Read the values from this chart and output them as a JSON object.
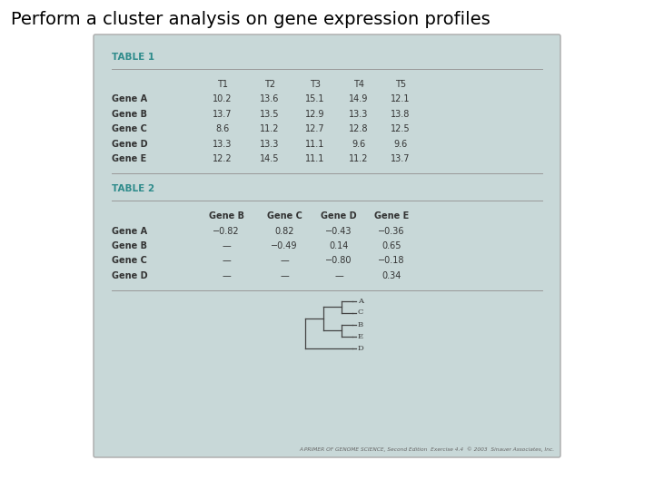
{
  "title": "Perform a cluster analysis on gene expression profiles",
  "title_fontsize": 14,
  "bg_color": "#c8d8d8",
  "outer_bg": "#ffffff",
  "table1_title": "TABLE 1",
  "table1_header": [
    "",
    "T1",
    "T2",
    "T3",
    "T4",
    "T5"
  ],
  "table1_rows": [
    [
      "Gene A",
      "10.2",
      "13.6",
      "15.1",
      "14.9",
      "12.1"
    ],
    [
      "Gene B",
      "13.7",
      "13.5",
      "12.9",
      "13.3",
      "13.8"
    ],
    [
      "Gene C",
      "8.6",
      "11.2",
      "12.7",
      "12.8",
      "12.5"
    ],
    [
      "Gene D",
      "13.3",
      "13.3",
      "11.1",
      "9.6",
      "9.6"
    ],
    [
      "Gene E",
      "12.2",
      "14.5",
      "11.1",
      "11.2",
      "13.7"
    ]
  ],
  "table2_title": "TABLE 2",
  "table2_header": [
    "",
    "Gene B",
    "Gene C",
    "Gene D",
    "Gene E"
  ],
  "table2_rows": [
    [
      "Gene A",
      "−0.82",
      "0.82",
      "−0.43",
      "−0.36"
    ],
    [
      "Gene B",
      "—",
      "−0.49",
      "0.14",
      "0.65"
    ],
    [
      "Gene C",
      "—",
      "—",
      "−0.80",
      "−0.18"
    ],
    [
      "Gene D",
      "—",
      "—",
      "—",
      "0.34"
    ]
  ],
  "teal_color": "#2e8b8b",
  "text_color": "#333333",
  "line_color": "#999999",
  "caption": "A PRIMER OF GENOME SCIENCE, Second Edition  Exercise 4.4  © 2003  Sinauer Associates, Inc.",
  "dendrogram_labels": [
    "A",
    "C",
    "B",
    "E",
    "D"
  ]
}
